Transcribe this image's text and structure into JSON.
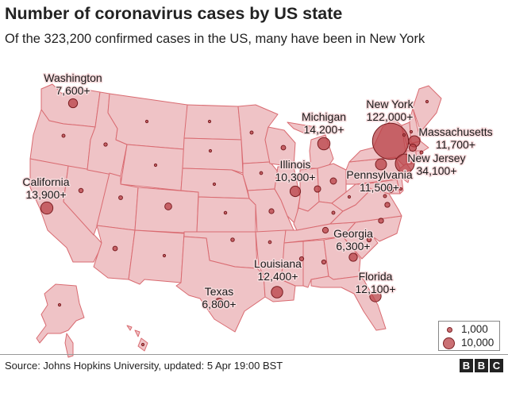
{
  "title": "Number of coronavirus cases by US state",
  "subtitle": "Of the 323,200 confirmed cases in the US, many have been in New York",
  "source": "Source: Johns Hopkins University, updated: 5 Apr 19:00 BST",
  "brand": [
    "B",
    "B",
    "C"
  ],
  "colors": {
    "state_fill": "#efc3c6",
    "state_border": "#d96b71",
    "bubble": "#b84046"
  },
  "legend": [
    {
      "label": "1,000",
      "value": 1000
    },
    {
      "label": "10,000",
      "value": 10000
    }
  ],
  "labels": [
    {
      "id": "washington",
      "name": "Washington",
      "cases": "7,600+"
    },
    {
      "id": "california",
      "name": "California",
      "cases": "13,900+"
    },
    {
      "id": "michigan",
      "name": "Michigan",
      "cases": "14,200+"
    },
    {
      "id": "illinois",
      "name": "Illinois",
      "cases": "10,300+"
    },
    {
      "id": "new-york",
      "name": "New York",
      "cases": "122,000+"
    },
    {
      "id": "massachusetts",
      "name": "Massachusetts",
      "cases": "11,700+"
    },
    {
      "id": "new-jersey",
      "name": "New Jersey",
      "cases": "34,100+"
    },
    {
      "id": "pennsylvania",
      "name": "Pennsylvania",
      "cases": "11,500+"
    },
    {
      "id": "georgia",
      "name": "Georgia",
      "cases": "6,300+"
    },
    {
      "id": "louisiana",
      "name": "Louisiana",
      "cases": "12,400+"
    },
    {
      "id": "florida",
      "name": "Florida",
      "cases": "12,100+"
    },
    {
      "id": "texas",
      "name": "Texas",
      "cases": "6,800+"
    }
  ],
  "bubbles": [
    {
      "id": "new-york",
      "cases": 122000
    },
    {
      "id": "new-jersey",
      "cases": 34100
    },
    {
      "id": "michigan",
      "cases": 14200
    },
    {
      "id": "california",
      "cases": 13900
    },
    {
      "id": "louisiana",
      "cases": 12400
    },
    {
      "id": "florida",
      "cases": 12100
    },
    {
      "id": "massachusetts",
      "cases": 11700
    },
    {
      "id": "pennsylvania",
      "cases": 11500
    },
    {
      "id": "illinois",
      "cases": 10300
    },
    {
      "id": "washington",
      "cases": 7600
    },
    {
      "id": "texas",
      "cases": 6800
    },
    {
      "id": "georgia",
      "cases": 6300
    },
    {
      "id": "connecticut",
      "cases": 5000
    },
    {
      "id": "colorado",
      "cases": 4500
    },
    {
      "id": "indiana",
      "cases": 3900
    },
    {
      "id": "ohio",
      "cases": 3700
    },
    {
      "id": "maryland",
      "cases": 3100
    },
    {
      "id": "tennessee",
      "cases": 3100
    },
    {
      "id": "north-carolina",
      "cases": 2400
    },
    {
      "id": "virginia",
      "cases": 2400
    },
    {
      "id": "missouri",
      "cases": 2300
    },
    {
      "id": "wisconsin",
      "cases": 2000
    },
    {
      "id": "arizona",
      "cases": 2000
    },
    {
      "id": "nevada",
      "cases": 1800
    },
    {
      "id": "alabama",
      "cases": 1700
    },
    {
      "id": "mississippi",
      "cases": 1600
    },
    {
      "id": "south-carolina",
      "cases": 1700
    },
    {
      "id": "utah",
      "cases": 1400
    },
    {
      "id": "oklahoma",
      "cases": 1200
    },
    {
      "id": "kentucky",
      "cases": 900
    },
    {
      "id": "washington-dc",
      "cases": 900
    },
    {
      "id": "minnesota",
      "cases": 900
    },
    {
      "id": "oregon",
      "cases": 900
    },
    {
      "id": "rhode-island",
      "cases": 900
    },
    {
      "id": "idaho",
      "cases": 1100
    },
    {
      "id": "iowa",
      "cases": 800
    },
    {
      "id": "arkansas",
      "cases": 800
    },
    {
      "id": "kansas",
      "cases": 700
    },
    {
      "id": "delaware",
      "cases": 600
    },
    {
      "id": "new-mexico",
      "cases": 600
    },
    {
      "id": "vermont",
      "cases": 500
    },
    {
      "id": "new-hampshire",
      "cases": 600
    },
    {
      "id": "maine",
      "cases": 450
    },
    {
      "id": "nebraska",
      "cases": 300
    },
    {
      "id": "montana",
      "cases": 300
    },
    {
      "id": "west-virginia",
      "cases": 300
    },
    {
      "id": "south-dakota",
      "cases": 200
    },
    {
      "id": "north-dakota",
      "cases": 200
    },
    {
      "id": "wyoming",
      "cases": 200
    },
    {
      "id": "alaska",
      "cases": 200
    },
    {
      "id": "hawaii",
      "cases": 400
    }
  ]
}
